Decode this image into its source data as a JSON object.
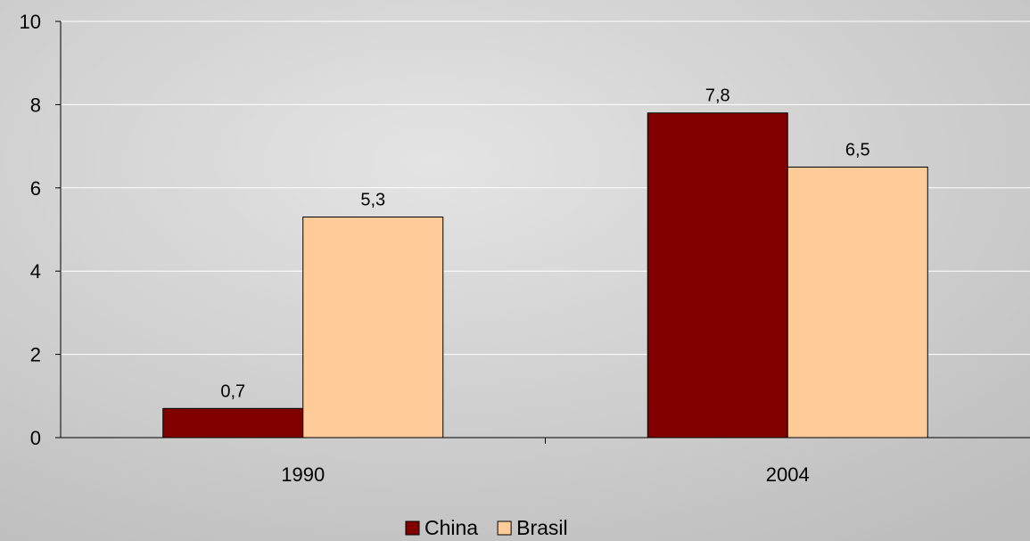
{
  "chart_data": {
    "type": "bar",
    "categories": [
      "1990",
      "2004"
    ],
    "series": [
      {
        "name": "China",
        "values": [
          0.7,
          7.8
        ],
        "labels": [
          "0,7",
          "7,8"
        ]
      },
      {
        "name": "Brasil",
        "values": [
          5.3,
          6.5
        ],
        "labels": [
          "5,3",
          "6,5"
        ]
      }
    ],
    "ylim": [
      0,
      10
    ],
    "yticks": [
      "0",
      "2",
      "4",
      "6",
      "8",
      "10"
    ],
    "grid": true,
    "legend_position": "bottom",
    "colors": {
      "China": "#800000",
      "Brasil": "#ffcc99",
      "background": "#c9c9c9",
      "grid": "#ffffff"
    }
  }
}
